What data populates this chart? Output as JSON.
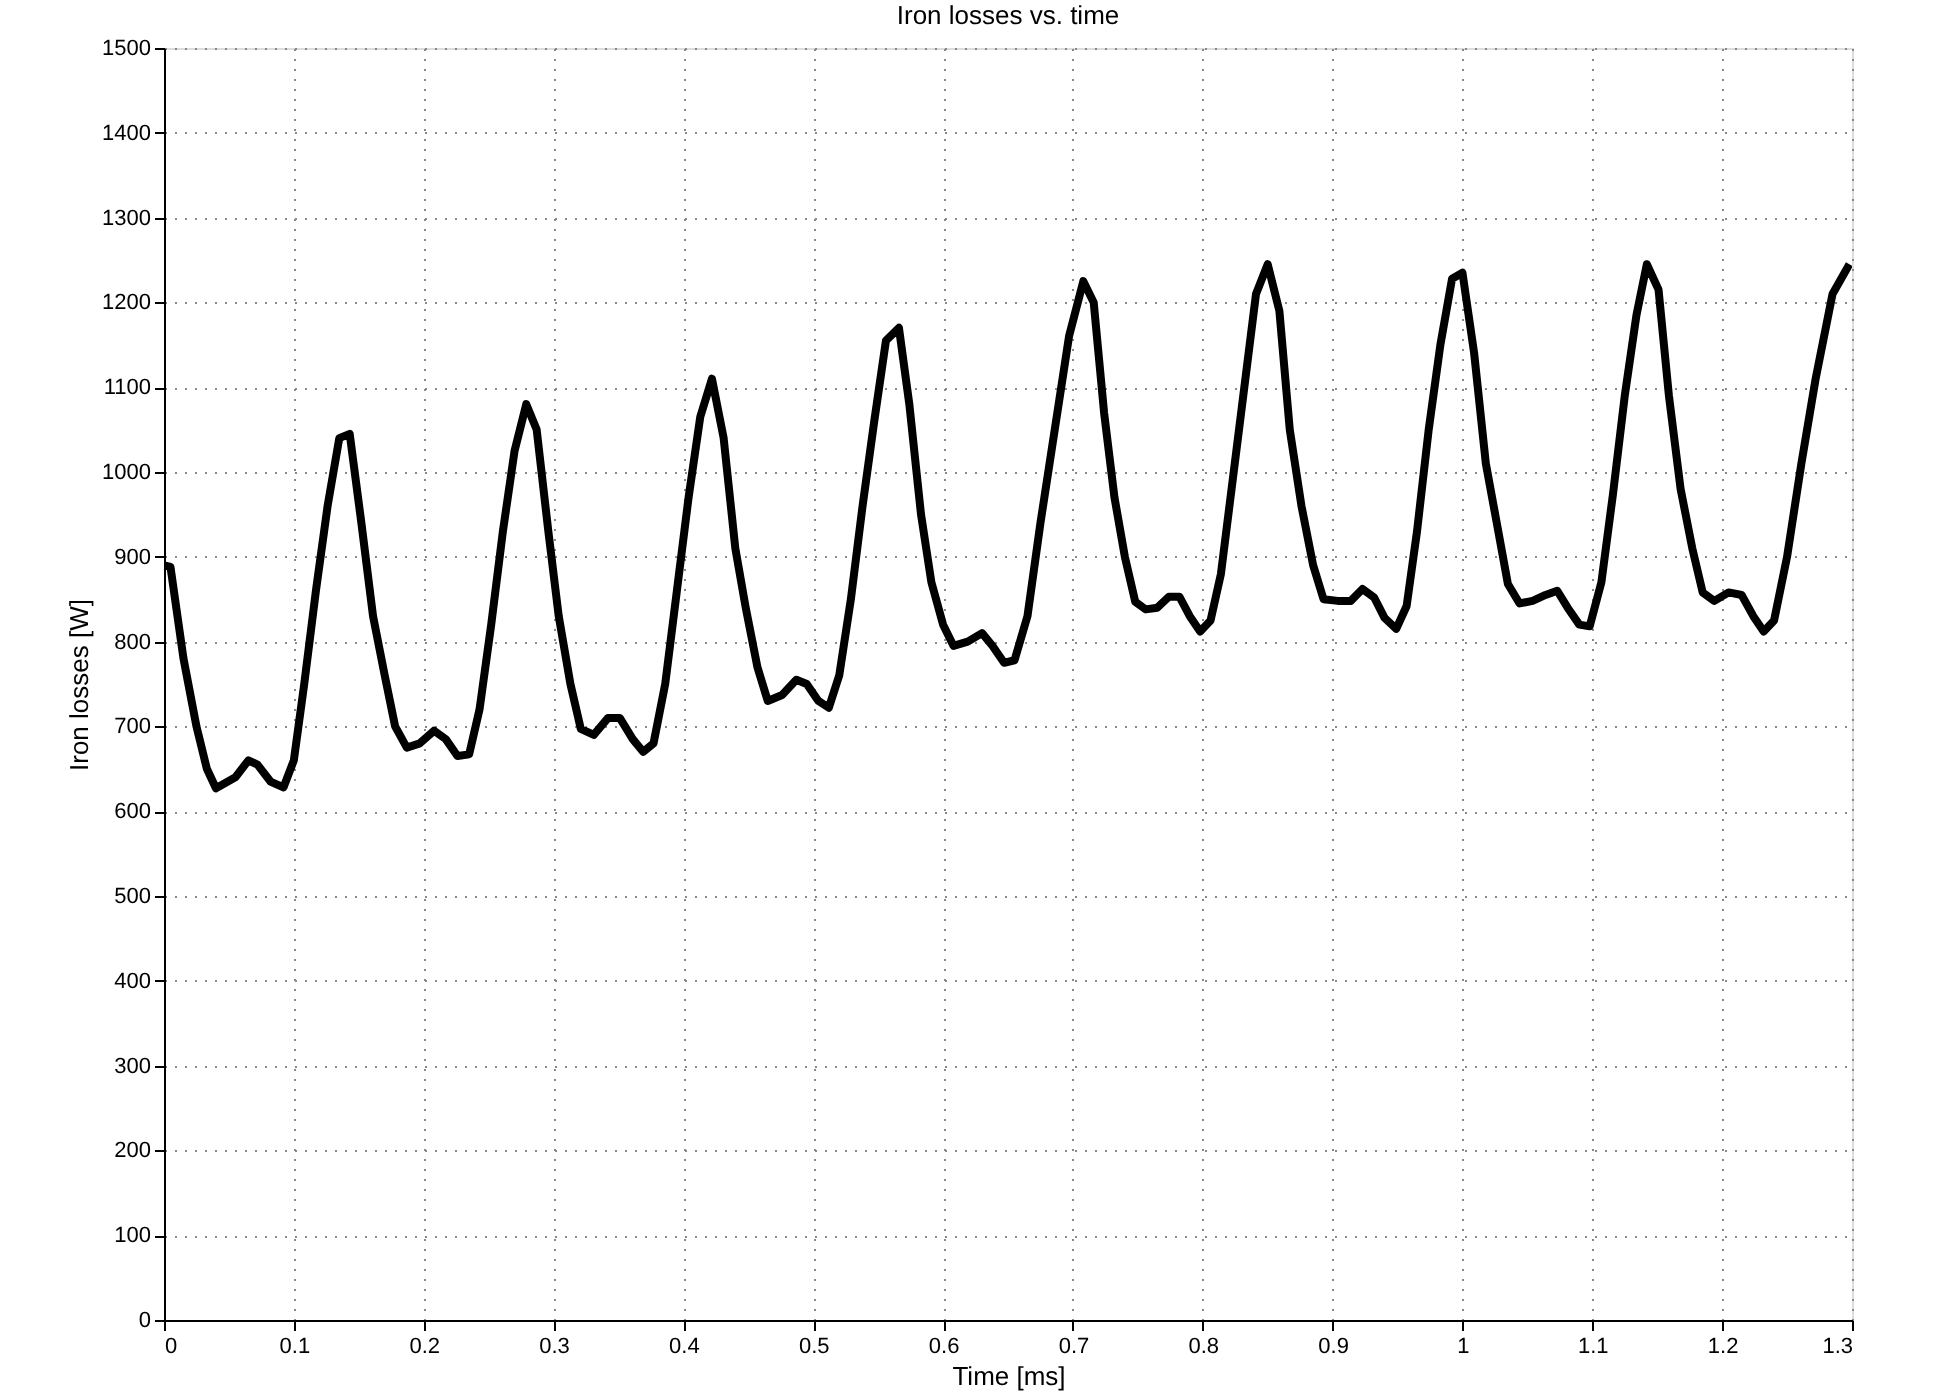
{
  "chart_data": {
    "type": "line",
    "title": "Iron losses vs. time",
    "xlabel": "Time [ms]",
    "ylabel": "Iron losses [W]",
    "xlim": [
      0,
      1.3
    ],
    "xticks": [
      0,
      0.1,
      0.2,
      0.3,
      0.4,
      0.5,
      0.6,
      0.7,
      0.8,
      0.9,
      1,
      1.1,
      1.2,
      1.3
    ],
    "ylim": [
      0,
      1500
    ],
    "yticks": [
      0,
      100,
      200,
      300,
      400,
      500,
      600,
      700,
      800,
      900,
      1000,
      1100,
      1200,
      1300,
      1400,
      1500
    ],
    "grid": true,
    "line_style": "solid",
    "marker": "none",
    "x": [
      0,
      0.005,
      0.015,
      0.025,
      0.033,
      0.04,
      0.055,
      0.065,
      0.072,
      0.082,
      0.092,
      0.1,
      0.108,
      0.117,
      0.126,
      0.135,
      0.143,
      0.152,
      0.161,
      0.17,
      0.178,
      0.187,
      0.197,
      0.208,
      0.217,
      0.226,
      0.235,
      0.243,
      0.252,
      0.261,
      0.27,
      0.279,
      0.287,
      0.296,
      0.304,
      0.313,
      0.321,
      0.331,
      0.342,
      0.351,
      0.361,
      0.369,
      0.377,
      0.386,
      0.395,
      0.404,
      0.413,
      0.422,
      0.431,
      0.44,
      0.448,
      0.457,
      0.465,
      0.476,
      0.487,
      0.495,
      0.504,
      0.512,
      0.52,
      0.529,
      0.538,
      0.547,
      0.556,
      0.566,
      0.574,
      0.583,
      0.591,
      0.6,
      0.608,
      0.619,
      0.63,
      0.638,
      0.647,
      0.655,
      0.665,
      0.675,
      0.686,
      0.697,
      0.708,
      0.716,
      0.724,
      0.732,
      0.74,
      0.748,
      0.756,
      0.765,
      0.774,
      0.782,
      0.79,
      0.798,
      0.806,
      0.814,
      0.823,
      0.832,
      0.841,
      0.85,
      0.859,
      0.867,
      0.876,
      0.885,
      0.893,
      0.904,
      0.914,
      0.923,
      0.932,
      0.94,
      0.949,
      0.957,
      0.965,
      0.974,
      0.983,
      0.992,
      1.0,
      1.009,
      1.018,
      1.027,
      1.035,
      1.044,
      1.054,
      1.064,
      1.073,
      1.081,
      1.09,
      1.098,
      1.107,
      1.116,
      1.125,
      1.134,
      1.142,
      1.151,
      1.159,
      1.168,
      1.177,
      1.185,
      1.194,
      1.205,
      1.215,
      1.224,
      1.232,
      1.24,
      1.25,
      1.261,
      1.272,
      1.285,
      1.298
    ],
    "series": [
      {
        "color": "#000000",
        "values": [
          890,
          888,
          780,
          700,
          650,
          627,
          640,
          660,
          655,
          635,
          628,
          660,
          750,
          860,
          960,
          1040,
          1045,
          940,
          830,
          760,
          700,
          675,
          680,
          695,
          685,
          665,
          667,
          720,
          820,
          930,
          1025,
          1080,
          1050,
          930,
          830,
          750,
          697,
          690,
          710,
          710,
          685,
          670,
          680,
          750,
          860,
          970,
          1065,
          1110,
          1040,
          910,
          840,
          770,
          730,
          737,
          755,
          750,
          730,
          722,
          760,
          850,
          960,
          1060,
          1155,
          1170,
          1080,
          950,
          870,
          820,
          795,
          800,
          810,
          795,
          775,
          778,
          830,
          940,
          1050,
          1160,
          1225,
          1200,
          1070,
          970,
          900,
          847,
          838,
          840,
          853,
          853,
          830,
          812,
          825,
          880,
          990,
          1100,
          1210,
          1245,
          1190,
          1050,
          960,
          890,
          850,
          848,
          848,
          862,
          852,
          828,
          815,
          842,
          930,
          1050,
          1150,
          1228,
          1235,
          1140,
          1010,
          935,
          868,
          845,
          848,
          855,
          860,
          840,
          820,
          818,
          870,
          975,
          1090,
          1185,
          1245,
          1215,
          1090,
          980,
          910,
          858,
          848,
          858,
          855,
          830,
          812,
          825,
          900,
          1010,
          1110,
          1210,
          1245
        ]
      }
    ]
  }
}
